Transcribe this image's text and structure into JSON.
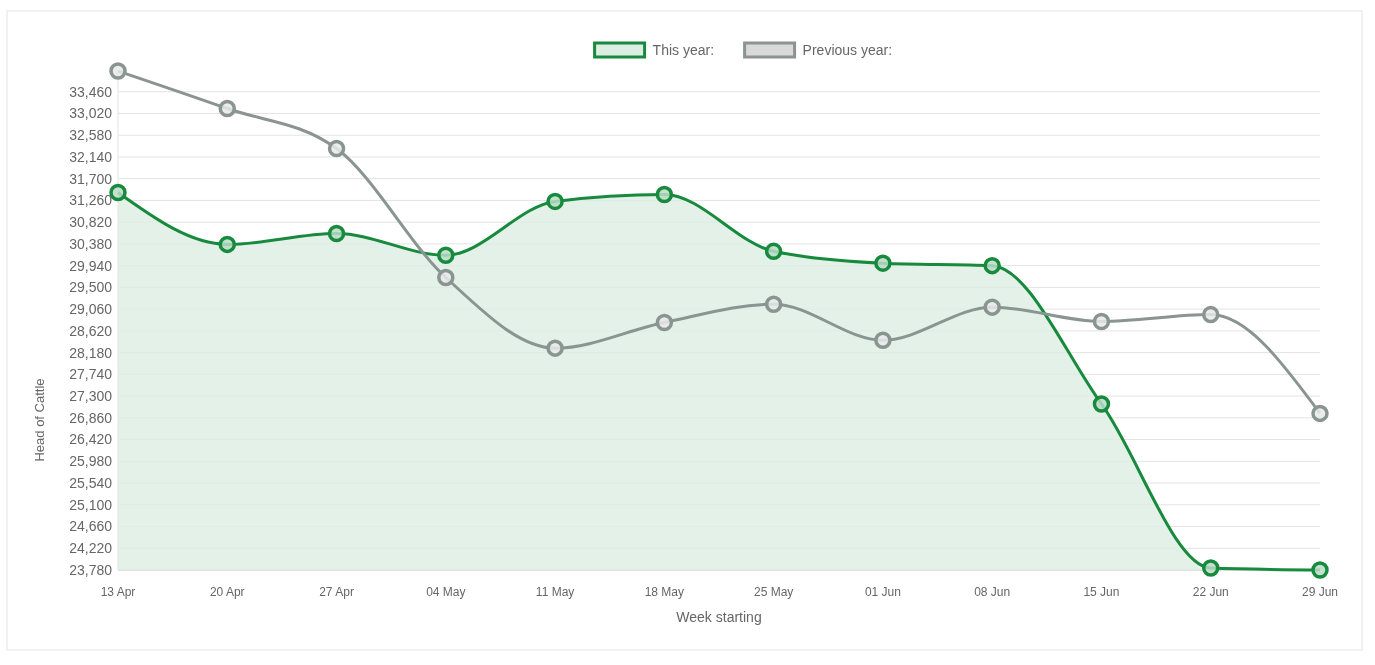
{
  "chart_data": {
    "type": "line",
    "xlabel": "Week starting",
    "ylabel": "Head of Cattle",
    "categories": [
      "13 Apr",
      "20 Apr",
      "27 Apr",
      "04 May",
      "11 May",
      "18 May",
      "25 May",
      "01 Jun",
      "08 Jun",
      "15 Jun",
      "22 Jun",
      "29 Jun"
    ],
    "series": [
      {
        "name": "This year:",
        "type": "area",
        "color": "#178a3e",
        "values": [
          31420,
          30370,
          30590,
          30150,
          31240,
          31380,
          30230,
          29990,
          29940,
          27140,
          23820,
          23780
        ]
      },
      {
        "name": "Previous year:",
        "type": "line",
        "color": "#8a9490",
        "values": [
          33880,
          33120,
          32310,
          29700,
          28270,
          28790,
          29160,
          28430,
          29100,
          28810,
          28950,
          26950
        ]
      }
    ],
    "ylim": [
      23780,
      33900
    ],
    "yticks": [
      {
        "value": 23780,
        "label": "23,780"
      },
      {
        "value": 24220,
        "label": "24,220"
      },
      {
        "value": 24660,
        "label": "24,660"
      },
      {
        "value": 25100,
        "label": "25,100"
      },
      {
        "value": 25540,
        "label": "25,540"
      },
      {
        "value": 25980,
        "label": "25,980"
      },
      {
        "value": 26420,
        "label": "26,420"
      },
      {
        "value": 26860,
        "label": "26,860"
      },
      {
        "value": 27300,
        "label": "27,300"
      },
      {
        "value": 27740,
        "label": "27,740"
      },
      {
        "value": 28180,
        "label": "28,180"
      },
      {
        "value": 28620,
        "label": "28,620"
      },
      {
        "value": 29060,
        "label": "29,060"
      },
      {
        "value": 29500,
        "label": "29,500"
      },
      {
        "value": 29940,
        "label": "29,940"
      },
      {
        "value": 30380,
        "label": "30,380"
      },
      {
        "value": 30820,
        "label": "30,820"
      },
      {
        "value": 31260,
        "label": "31,260"
      },
      {
        "value": 31700,
        "label": "31,700"
      },
      {
        "value": 32140,
        "label": "32,140"
      },
      {
        "value": 32580,
        "label": "32,580"
      },
      {
        "value": 33020,
        "label": "33,020"
      },
      {
        "value": 33460,
        "label": "33,460"
      }
    ],
    "grid": "y",
    "legend": "top",
    "marker": "circle",
    "line_style": "solid"
  }
}
